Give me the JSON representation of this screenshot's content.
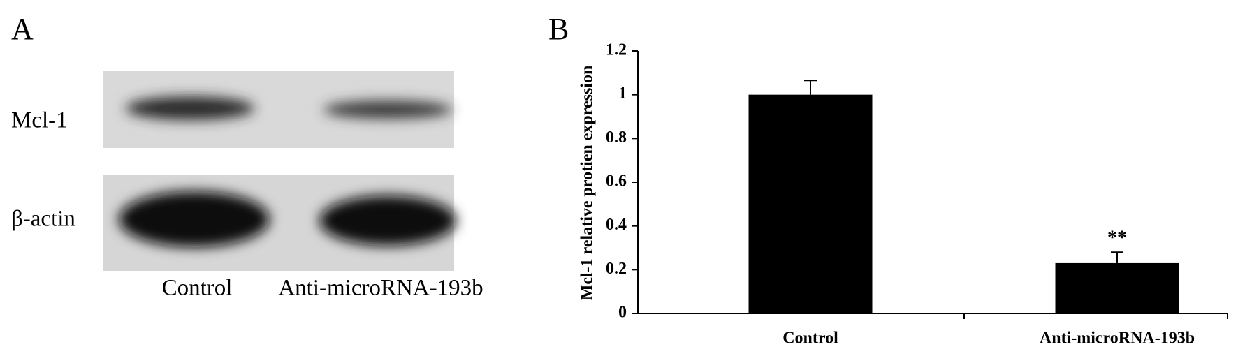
{
  "panel_a": {
    "label": "A",
    "rows": [
      "Mcl-1",
      "β-actin"
    ],
    "lanes": [
      "Control",
      "Anti-microRNA-193b"
    ]
  },
  "chart_data": {
    "type": "bar",
    "label": "B",
    "y_label": "Mcl-1 relative protien expression",
    "categories": [
      "Control",
      "Anti-microRNA-193b"
    ],
    "values": [
      1,
      0.23
    ],
    "errors": [
      0.065,
      0.05
    ],
    "color": "#000000",
    "annotation": "**",
    "ylim": [
      0,
      1.2
    ],
    "yticks": [
      0,
      0.2,
      0.4,
      0.6,
      0.8,
      1,
      1.2
    ],
    "grid": false
  }
}
